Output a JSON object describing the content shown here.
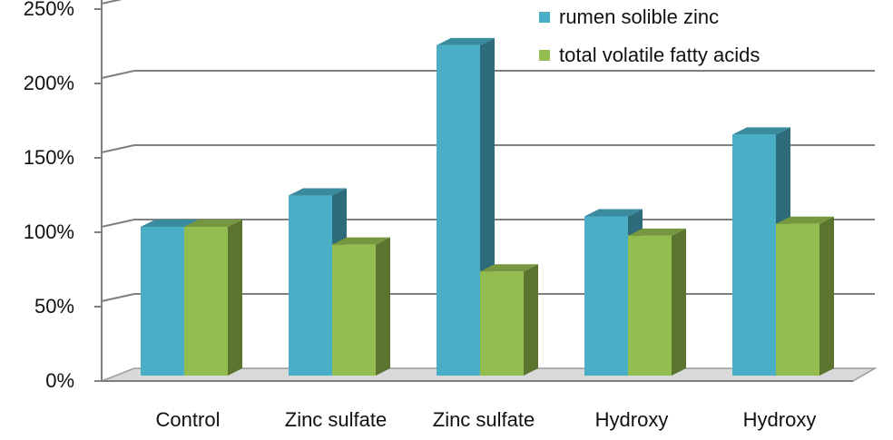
{
  "chart_data": {
    "type": "bar",
    "categories": [
      "Control",
      "Zinc sulfate",
      "Zinc sulfate",
      "Hydroxy",
      "Hydroxy"
    ],
    "series": [
      {
        "name": "rumen solible zinc",
        "values": [
          100,
          121,
          222,
          107,
          162
        ],
        "color": "#4aaec7"
      },
      {
        "name": "total volatile fatty acids",
        "values": [
          100,
          88,
          70,
          94,
          102
        ],
        "color": "#93bd4f"
      }
    ],
    "yticks": [
      "0%",
      "50%",
      "100%",
      "150%",
      "200%",
      "250%"
    ],
    "ylim": [
      0,
      250
    ],
    "grid": true,
    "legend_position": "top-right"
  }
}
